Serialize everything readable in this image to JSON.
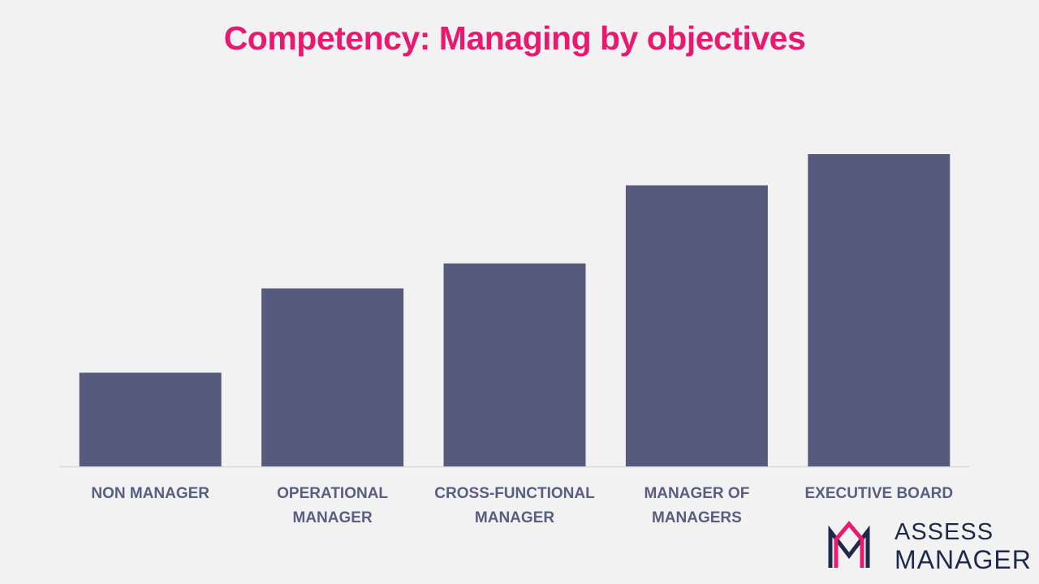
{
  "chart_data": {
    "type": "bar",
    "title": "Competency: Managing by objectives",
    "categories": [
      "NON MANAGER",
      "OPERATIONAL MANAGER",
      "CROSS-FUNCTIONAL MANAGER",
      "MANAGER OF MANAGERS",
      "EXECUTIVE BOARD"
    ],
    "values": [
      30,
      57,
      65,
      90,
      100
    ],
    "color": "#565b7e"
  },
  "logo": {
    "line1": "ASSESS",
    "line2": "MANAGER"
  }
}
